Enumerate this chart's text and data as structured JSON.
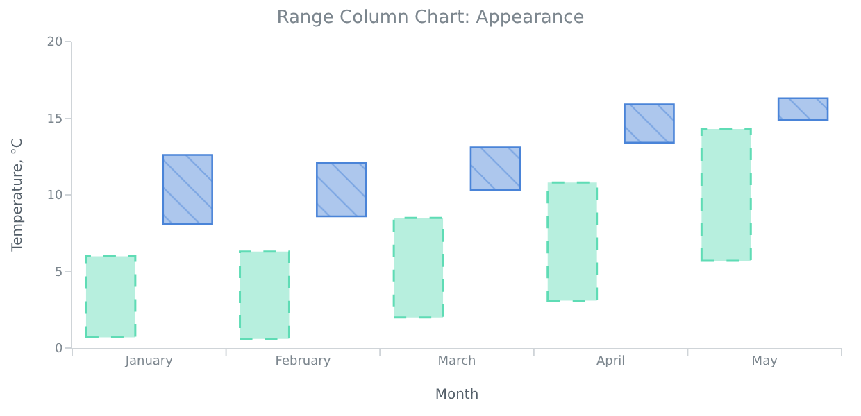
{
  "chart_data": {
    "type": "bar",
    "title": "Range Column Chart: Appearance",
    "xlabel": "Month",
    "ylabel": "Temperature, °C",
    "categories": [
      "January",
      "February",
      "March",
      "April",
      "May"
    ],
    "series": [
      {
        "color": "#5fdcb5",
        "line_style": "dashed",
        "base": [
          0.7,
          0.6,
          2.0,
          3.1,
          5.7
        ],
        "values": [
          5.3,
          5.7,
          6.5,
          7.7,
          8.6
        ]
      },
      {
        "color": "#4a84d8",
        "line_style": "solid",
        "base": [
          8.1,
          8.6,
          10.3,
          13.4,
          14.9
        ],
        "values": [
          4.5,
          3.5,
          2.8,
          2.5,
          1.4
        ]
      }
    ],
    "ylim": [
      0,
      20
    ],
    "yticks": [
      0,
      5,
      10,
      15,
      20
    ]
  }
}
